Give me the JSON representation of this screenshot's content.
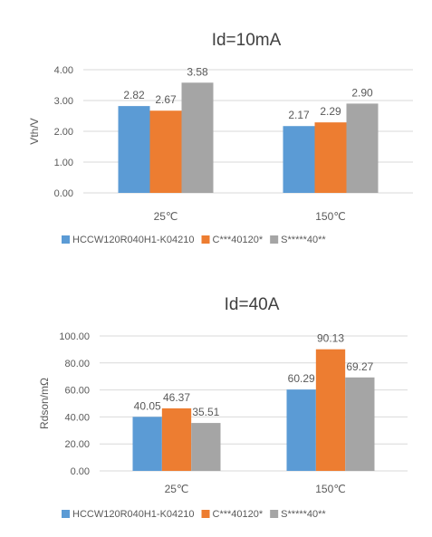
{
  "chart_data": [
    {
      "type": "bar",
      "title": "Id=10mA",
      "ylabel": "Vth/V",
      "xlabel": "",
      "categories": [
        "25℃",
        "150℃"
      ],
      "series": [
        {
          "name": "HCCW120R040H1-K04210",
          "values": [
            2.82,
            2.17
          ]
        },
        {
          "name": "C***40120*",
          "values": [
            2.67,
            2.29
          ]
        },
        {
          "name": "S*****40**",
          "values": [
            3.58,
            2.9
          ]
        }
      ],
      "value_labels": [
        [
          "2.82",
          "2.17"
        ],
        [
          "2.67",
          "2.29"
        ],
        [
          "3.58",
          "2.90"
        ]
      ],
      "ylim": [
        0,
        4
      ],
      "yticks": [
        "0.00",
        "1.00",
        "2.00",
        "3.00",
        "4.00"
      ],
      "grid": true,
      "legend_position": "bottom"
    },
    {
      "type": "bar",
      "title": "Id=40A",
      "ylabel": "Rdson/mΩ",
      "xlabel": "",
      "categories": [
        "25℃",
        "150℃"
      ],
      "series": [
        {
          "name": "HCCW120R040H1-K04210",
          "values": [
            40.05,
            60.29
          ]
        },
        {
          "name": "C***40120*",
          "values": [
            46.37,
            90.13
          ]
        },
        {
          "name": "S*****40**",
          "values": [
            35.51,
            69.27
          ]
        }
      ],
      "value_labels": [
        [
          "40.05",
          "60.29"
        ],
        [
          "46.37",
          "90.13"
        ],
        [
          "35.51",
          "69.27"
        ]
      ],
      "ylim": [
        0,
        100
      ],
      "yticks": [
        "0.00",
        "20.00",
        "40.00",
        "60.00",
        "80.00",
        "100.00"
      ],
      "grid": true,
      "legend_position": "bottom"
    }
  ],
  "colors": {
    "series": [
      "#5B9BD5",
      "#ED7D31",
      "#A5A5A5"
    ],
    "grid": "#D9D9D9",
    "text": "#595959",
    "title": "#404040"
  }
}
